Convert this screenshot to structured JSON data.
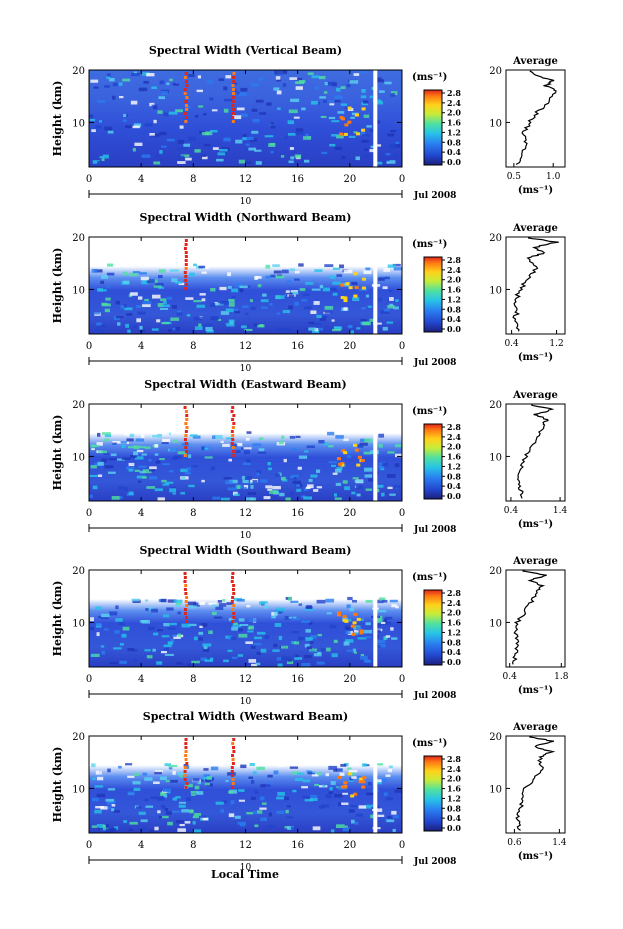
{
  "figure": {
    "xlabel": "Local Time",
    "date_label": "Jul 2008",
    "day_marker": "10",
    "ylabel": "Height (km)",
    "unit_label": "(ms⁻¹)",
    "average_title": "Average",
    "average_xlabel": "(ms⁻¹)"
  },
  "chart_data": [
    {
      "type": "heatmap",
      "title": "Spectral Width (Vertical Beam)",
      "ylabel": "Height (km)",
      "x_ticks": [
        "0",
        "4",
        "8",
        "12",
        "16",
        "20",
        "0"
      ],
      "y_ticks": [
        "10",
        "20"
      ],
      "xlim": [
        0,
        24
      ],
      "ylim": [
        1.5,
        20
      ],
      "colorbar_ticks": [
        "0.0",
        "0.4",
        "0.8",
        "1.2",
        "1.6",
        "2.0",
        "2.4",
        "2.8"
      ],
      "colorbar_range": [
        0,
        2.8
      ],
      "profile": {
        "title": "Average",
        "xlabel": "(ms⁻¹)",
        "x_ticks": [
          "0.5",
          "1.0"
        ],
        "xlim": [
          0.4,
          1.15
        ],
        "heights": [
          2,
          4,
          6,
          8,
          10,
          12,
          14,
          16,
          17,
          18,
          19,
          20
        ],
        "values": [
          0.55,
          0.6,
          0.65,
          0.62,
          0.7,
          0.8,
          0.95,
          1.05,
          0.9,
          1.0,
          0.75,
          0.7
        ]
      }
    },
    {
      "type": "heatmap",
      "title": "Spectral Width (Northward Beam)",
      "ylabel": "Height (km)",
      "x_ticks": [
        "0",
        "4",
        "8",
        "12",
        "16",
        "20",
        "0"
      ],
      "y_ticks": [
        "10",
        "20"
      ],
      "xlim": [
        0,
        24
      ],
      "ylim": [
        1.5,
        20
      ],
      "colorbar_ticks": [
        "0.0",
        "0.4",
        "0.8",
        "1.2",
        "1.6",
        "2.0",
        "2.4",
        "2.8"
      ],
      "colorbar_range": [
        0,
        2.8
      ],
      "profile": {
        "title": "Average",
        "xlabel": "(ms⁻¹)",
        "x_ticks": [
          "0.4",
          "1.2"
        ],
        "xlim": [
          0.3,
          1.35
        ],
        "heights": [
          2,
          4,
          6,
          8,
          10,
          12,
          14,
          16,
          17,
          18,
          19,
          20
        ],
        "values": [
          0.55,
          0.45,
          0.5,
          0.48,
          0.55,
          0.7,
          0.85,
          0.7,
          1.0,
          0.8,
          1.2,
          0.6
        ]
      }
    },
    {
      "type": "heatmap",
      "title": "Spectral Width (Eastward Beam)",
      "ylabel": "Height (km)",
      "x_ticks": [
        "0",
        "4",
        "8",
        "12",
        "16",
        "20",
        "0"
      ],
      "y_ticks": [
        "10",
        "20"
      ],
      "xlim": [
        0,
        24
      ],
      "ylim": [
        1.5,
        20
      ],
      "colorbar_ticks": [
        "0.0",
        "0.4",
        "0.8",
        "1.2",
        "1.6",
        "2.0",
        "2.4",
        "2.8"
      ],
      "colorbar_range": [
        0,
        2.8
      ],
      "profile": {
        "title": "Average",
        "xlabel": "(ms⁻¹)",
        "x_ticks": [
          "0.4",
          "1.4"
        ],
        "xlim": [
          0.3,
          1.5
        ],
        "heights": [
          2,
          4,
          6,
          8,
          10,
          12,
          14,
          16,
          17,
          18,
          19,
          20
        ],
        "values": [
          0.65,
          0.6,
          0.55,
          0.6,
          0.7,
          0.85,
          1.0,
          1.05,
          1.15,
          0.9,
          1.25,
          0.7
        ]
      }
    },
    {
      "type": "heatmap",
      "title": "Spectral Width (Southward Beam)",
      "ylabel": "Height (km)",
      "x_ticks": [
        "0",
        "4",
        "8",
        "12",
        "16",
        "20",
        "0"
      ],
      "y_ticks": [
        "10",
        "20"
      ],
      "xlim": [
        0,
        24
      ],
      "ylim": [
        1.5,
        20
      ],
      "colorbar_ticks": [
        "0.0",
        "0.4",
        "0.8",
        "1.2",
        "1.6",
        "2.0",
        "2.4",
        "2.8"
      ],
      "colorbar_range": [
        0,
        2.8
      ],
      "profile": {
        "title": "Average",
        "xlabel": "(ms⁻¹)",
        "x_ticks": [
          "0.4",
          "1.8"
        ],
        "xlim": [
          0.3,
          1.9
        ],
        "heights": [
          2,
          4,
          6,
          8,
          10,
          12,
          14,
          16,
          17,
          18,
          19,
          20
        ],
        "values": [
          0.5,
          0.55,
          0.6,
          0.55,
          0.6,
          0.8,
          1.0,
          1.1,
          1.3,
          0.95,
          1.35,
          0.7
        ]
      }
    },
    {
      "type": "heatmap",
      "title": "Spectral Width (Westward Beam)",
      "ylabel": "Height (km)",
      "x_ticks": [
        "0",
        "4",
        "8",
        "12",
        "16",
        "20",
        "0"
      ],
      "y_ticks": [
        "10",
        "20"
      ],
      "xlim": [
        0,
        24
      ],
      "ylim": [
        1.5,
        20
      ],
      "colorbar_ticks": [
        "0.0",
        "0.4",
        "0.8",
        "1.2",
        "1.6",
        "2.0",
        "2.4",
        "2.8"
      ],
      "colorbar_range": [
        0,
        2.8
      ],
      "profile": {
        "title": "Average",
        "xlabel": "(ms⁻¹)",
        "x_ticks": [
          "0.6",
          "1.4"
        ],
        "xlim": [
          0.45,
          1.5
        ],
        "heights": [
          2,
          4,
          6,
          8,
          10,
          12,
          14,
          16,
          17,
          18,
          19,
          20
        ],
        "values": [
          0.7,
          0.65,
          0.7,
          0.75,
          0.8,
          0.95,
          1.1,
          1.05,
          1.25,
          0.95,
          1.3,
          0.8
        ]
      }
    }
  ]
}
